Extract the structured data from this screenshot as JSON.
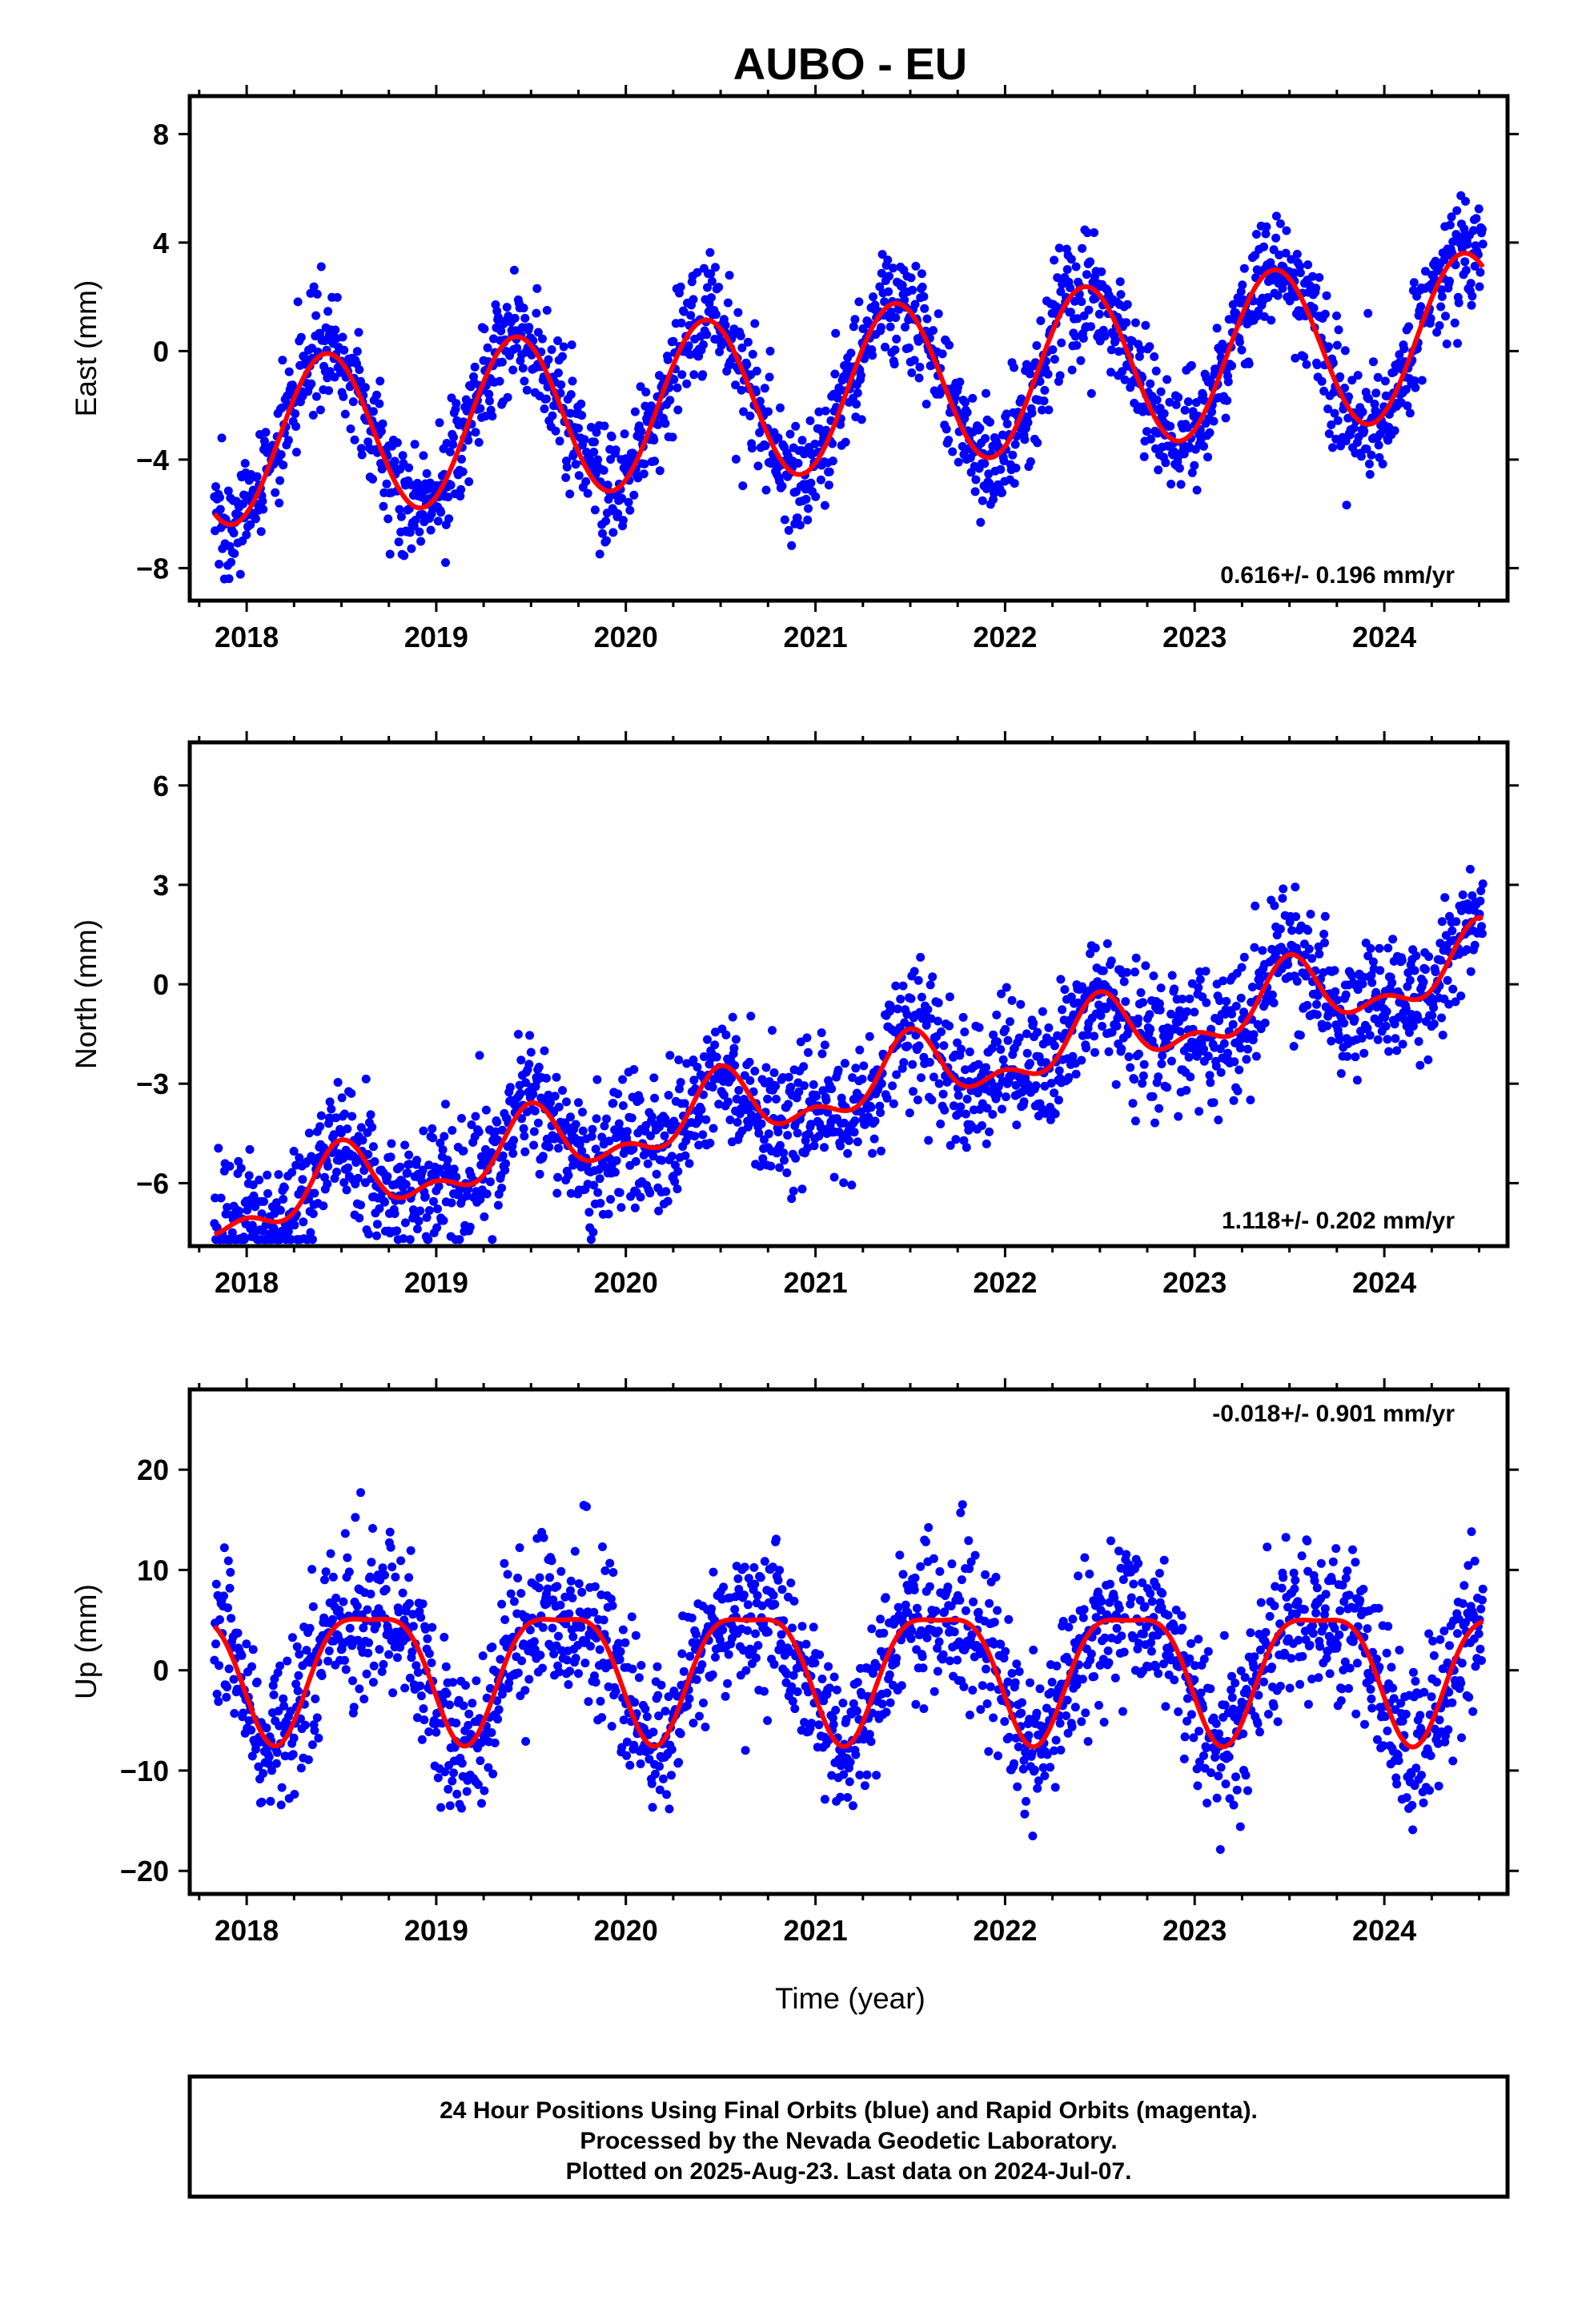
{
  "chart_data": {
    "type": "scatter",
    "title": "AUBO - EU",
    "xlabel": "Time (year)",
    "x_range": [
      2017.7,
      2024.65
    ],
    "x_ticks": [
      "2018",
      "2019",
      "2020",
      "2021",
      "2022",
      "2023",
      "2024"
    ],
    "data_span": [
      2017.83,
      2024.52
    ],
    "point_color": "#0000ff",
    "fit_color": "#ff0000",
    "panels": [
      {
        "id": "east",
        "ylabel": "East (mm)",
        "ylim": [
          -9.2,
          9.4
        ],
        "y_ticks": [
          "8",
          "4",
          "0",
          "−4",
          "−8"
        ],
        "y_tick_values": [
          8,
          4,
          0,
          -4,
          -8
        ],
        "rate_label": "0.616+/- 0.196 mm/yr",
        "rate_position": "bottom-right",
        "fit": {
          "offset": -1.5,
          "trend": 0.616,
          "annual_amp": 3.0,
          "annual_phase_year": 2018.42,
          "semiannual_amp": 0.0,
          "semiannual_phase_year": 0.0
        },
        "scatter_sd": 1.1,
        "n_points": 1900
      },
      {
        "id": "north",
        "ylabel": "North (mm)",
        "ylim": [
          -7.9,
          7.3
        ],
        "y_ticks": [
          "6",
          "3",
          "0",
          "−3",
          "−6"
        ],
        "y_tick_values": [
          6,
          3,
          0,
          -3,
          -6
        ],
        "rate_label": "1.118+/- 0.202 mm/yr",
        "rate_position": "bottom-right",
        "fit": {
          "offset": -3.3,
          "trend": 1.118,
          "annual_amp": 0.9,
          "annual_phase_year": 2018.5,
          "semiannual_amp": 0.5,
          "semiannual_phase_year": 2018.0
        },
        "scatter_sd": 1.0,
        "n_points": 1900
      },
      {
        "id": "up",
        "ylabel": "Up (mm)",
        "ylim": [
          -22.3,
          28.0
        ],
        "y_ticks": [
          "20",
          "10",
          "0",
          "−10",
          "−20"
        ],
        "y_tick_values": [
          20,
          10,
          0,
          -10,
          -20
        ],
        "rate_label": "-0.018+/- 0.901 mm/yr",
        "rate_position": "top-right",
        "fit": {
          "offset": 0.5,
          "trend": -0.018,
          "annual_amp": 6.3,
          "annual_phase_year": 2018.65,
          "semiannual_amp": 1.8,
          "semiannual_phase_year": 2018.4
        },
        "scatter_sd": 3.8,
        "n_points": 1900
      }
    ]
  },
  "footer": {
    "line1": "24 Hour Positions Using Final Orbits (blue) and Rapid Orbits (magenta).",
    "line2": "Processed by the Nevada Geodetic Laboratory.",
    "line3": "Plotted on 2025-Aug-23. Last data on 2024-Jul-07."
  }
}
